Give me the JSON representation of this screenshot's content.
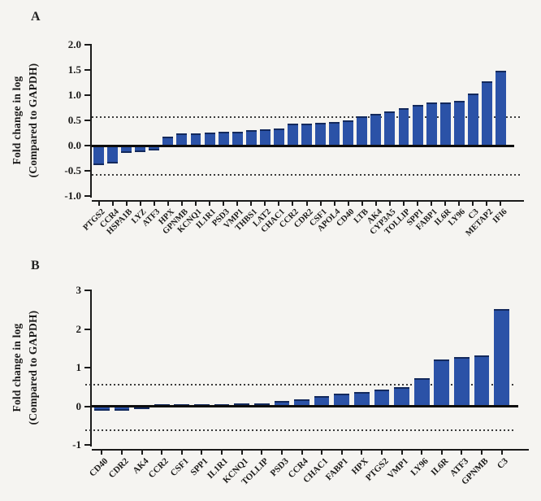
{
  "figure": {
    "background": "#f5f4f1",
    "bar_color": "#2b52a7",
    "bar_cap_color": "#13295c",
    "axis_color": "#1a1a1a",
    "dotted_line_color": "#3c3c3c"
  },
  "chart_data": [
    {
      "type": "bar",
      "panel_label": "A",
      "title": "",
      "ylabel": "Fold change in log (Compared to GAPDH)",
      "ylabel_line1": "Fold change in log",
      "ylabel_line2": "(Compared to GAPDH)",
      "xlabel": "",
      "categories": [
        "PTGS2",
        "CCR4",
        "HSPA1B",
        "LYZ",
        "ATF3",
        "HPX",
        "GPNMB",
        "KCNQ1",
        "IL1R1",
        "PSD3",
        "VMP1",
        "THBS1",
        "LAT2",
        "CHAC1",
        "CCR2",
        "CDR2",
        "CSF1",
        "APOL4",
        "CD40",
        "LTB",
        "AK4",
        "CYP3A5",
        "TOLLIP",
        "SPP1",
        "FABP1",
        "IL6R",
        "LY96",
        "C3",
        "METAP2",
        "IFI6"
      ],
      "values": [
        -0.38,
        -0.35,
        -0.15,
        -0.13,
        -0.09,
        0.17,
        0.24,
        0.25,
        0.26,
        0.27,
        0.28,
        0.31,
        0.32,
        0.34,
        0.43,
        0.44,
        0.45,
        0.47,
        0.5,
        0.58,
        0.63,
        0.68,
        0.74,
        0.8,
        0.85,
        0.86,
        0.89,
        1.03,
        1.27,
        1.48
      ],
      "ylim": [
        -1,
        2
      ],
      "ytick_values": [
        2,
        1.5,
        1,
        0.5,
        0,
        -0.5,
        -1
      ],
      "ytick_labels": [
        "2.0",
        "1.5",
        "1.0",
        "0.5",
        "0.0",
        "-0.5",
        "-1.0"
      ],
      "threshold_lines": [
        0.56,
        -0.58
      ],
      "grid": false,
      "legend": "none",
      "bar_color": "#2b52a7"
    },
    {
      "type": "bar",
      "panel_label": "B",
      "title": "",
      "ylabel": "Fold change in log (Compared to GAPDH)",
      "ylabel_line1": "Fold change in log",
      "ylabel_line2": "(Compared to GAPDH)",
      "xlabel": "",
      "categories": [
        "CD40",
        "CDR2",
        "AK4",
        "CCR2",
        "CSF1",
        "SPP1",
        "IL1R1",
        "KCNQ1",
        "TOLLIP",
        "PSD3",
        "CCR4",
        "CHAC1",
        "FABP1",
        "HPX",
        "PTGS2",
        "VMP1",
        "LY96",
        "IL6R",
        "ATF3",
        "GPNMB",
        "C3"
      ],
      "values": [
        -0.12,
        -0.11,
        -0.08,
        0.03,
        0.04,
        0.05,
        0.05,
        0.07,
        0.08,
        0.13,
        0.18,
        0.27,
        0.33,
        0.36,
        0.44,
        0.49,
        0.73,
        1.22,
        1.27,
        1.32,
        2.52
      ],
      "ylim": [
        -1,
        3
      ],
      "ytick_values": [
        3,
        2,
        1,
        0,
        -1
      ],
      "ytick_labels": [
        "3",
        "2",
        "1",
        "0",
        "-1"
      ],
      "threshold_lines": [
        0.55,
        -0.63
      ],
      "grid": false,
      "legend": "none",
      "bar_color": "#2b52a7"
    }
  ]
}
